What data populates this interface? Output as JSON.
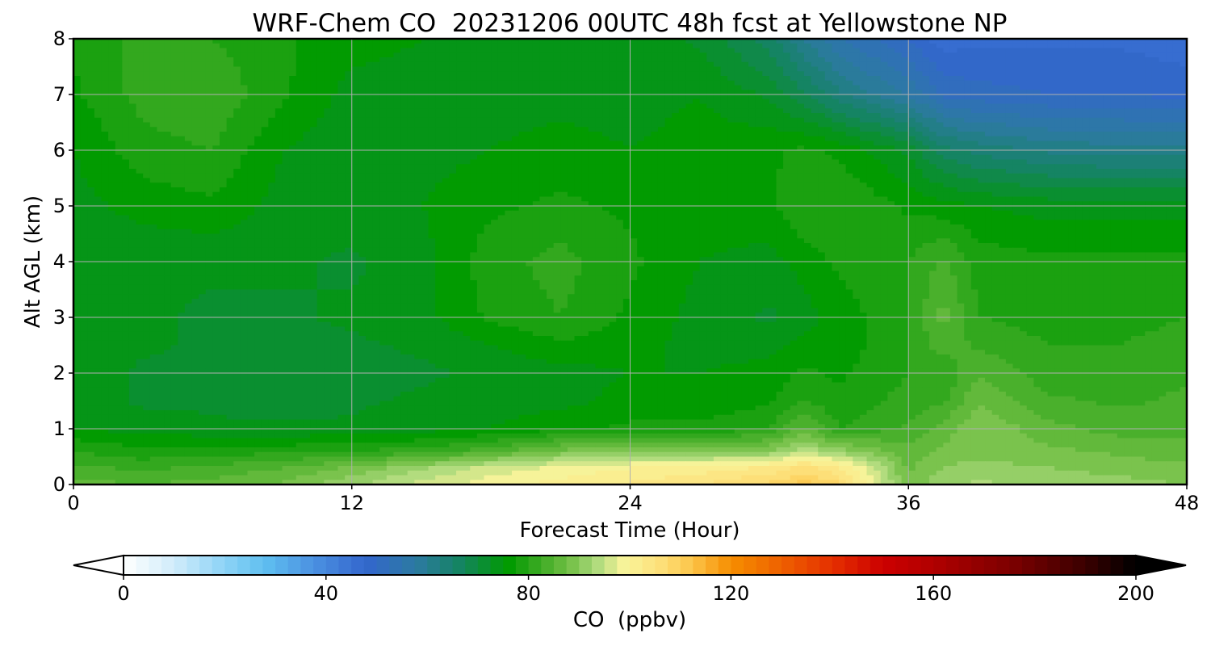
{
  "chart_data": {
    "type": "heatmap",
    "subtype": "filled-contour",
    "title": "WRF-Chem CO  20231206 00UTC 48h fcst at Yellowstone NP",
    "xlabel": "Forecast Time (Hour)",
    "ylabel": "Alt AGL (km)",
    "xlim": [
      0,
      48
    ],
    "ylim": [
      0,
      8
    ],
    "xticks": [
      0,
      12,
      24,
      36,
      48
    ],
    "yticks": [
      0,
      1,
      2,
      3,
      4,
      5,
      6,
      7,
      8
    ],
    "grid": true,
    "units_note": "values in ppbv, estimated from filled contour colors",
    "x": [
      0,
      3,
      6,
      9,
      12,
      15,
      18,
      21,
      24,
      27,
      30,
      31.5,
      33,
      36,
      37.5,
      39,
      42,
      45,
      48
    ],
    "y": [
      0,
      0.3,
      0.6,
      1,
      1.5,
      2,
      2.5,
      3,
      4,
      5,
      6,
      7,
      8
    ],
    "z": [
      [
        86,
        85,
        86,
        88,
        92,
        96,
        99,
        101,
        103,
        105,
        108,
        111,
        108,
        88,
        92,
        93,
        92,
        91,
        90
      ],
      [
        83,
        82,
        83,
        85,
        88,
        92,
        96,
        98,
        100,
        101,
        103,
        106,
        103,
        87,
        90,
        91,
        90,
        89,
        88
      ],
      [
        80,
        78,
        79,
        79,
        80,
        81,
        84,
        88,
        90,
        89,
        90,
        94,
        91,
        86,
        88,
        89,
        88,
        87,
        86
      ],
      [
        75,
        74,
        73,
        73,
        73,
        74,
        75,
        77,
        78,
        78,
        80,
        86,
        80,
        83,
        86,
        90,
        86,
        84,
        84
      ],
      [
        74,
        72,
        72,
        71,
        72,
        73,
        74,
        74,
        76,
        76,
        77,
        80,
        78,
        81,
        82,
        87,
        83,
        82,
        83
      ],
      [
        74,
        72,
        71,
        71,
        71,
        72,
        73,
        74,
        75,
        75,
        76,
        78,
        77,
        80,
        80,
        85,
        81,
        81,
        82
      ],
      [
        74,
        73,
        72,
        72,
        72,
        73,
        75,
        77,
        76,
        74,
        74,
        76,
        76,
        80,
        84,
        82,
        80,
        80,
        81
      ],
      [
        73,
        73,
        72,
        72,
        73,
        74,
        78,
        80,
        77,
        74,
        72,
        74,
        76,
        80,
        86,
        80,
        79,
        79,
        80
      ],
      [
        73,
        73,
        73,
        73,
        72,
        74,
        79,
        81,
        78,
        75,
        74,
        76,
        78,
        80,
        83,
        79,
        78,
        78,
        78
      ],
      [
        74,
        76,
        77,
        74,
        74,
        75,
        77,
        78,
        77,
        76,
        77,
        80,
        80,
        77,
        76,
        75,
        74,
        74,
        74
      ],
      [
        75,
        79,
        80,
        75,
        73,
        74,
        75,
        76,
        75,
        76,
        77,
        78,
        77,
        72,
        66,
        64,
        62,
        61,
        61
      ],
      [
        77,
        81,
        82,
        78,
        74,
        74,
        74,
        74,
        74,
        75,
        72,
        68,
        63,
        57,
        52,
        51,
        50,
        50,
        49
      ],
      [
        78,
        81,
        80,
        78,
        76,
        75,
        75,
        74,
        74,
        72,
        66,
        60,
        55,
        50,
        46,
        47,
        47,
        47,
        46
      ]
    ],
    "colorbar": {
      "label": "CO  (ppbv)",
      "min": 0,
      "max": 200,
      "step": 2.5,
      "ticks": [
        0,
        40,
        80,
        120,
        160,
        200
      ],
      "extend": "both",
      "orientation": "horizontal",
      "stops": [
        [
          0,
          "#ffffff"
        ],
        [
          10,
          "#d0ecfa"
        ],
        [
          20,
          "#8dd3f6"
        ],
        [
          28,
          "#5fbff0"
        ],
        [
          38,
          "#4a8fe0"
        ],
        [
          48,
          "#3366cc"
        ],
        [
          58,
          "#2c7aa0"
        ],
        [
          66,
          "#168366"
        ],
        [
          76,
          "#009a00"
        ],
        [
          82,
          "#3aaa22"
        ],
        [
          88,
          "#72bf45"
        ],
        [
          93,
          "#a8d87a"
        ],
        [
          99,
          "#f9f49a"
        ],
        [
          106,
          "#fde07a"
        ],
        [
          112,
          "#fcc74c"
        ],
        [
          120,
          "#f68d00"
        ],
        [
          128,
          "#f06a00"
        ],
        [
          140,
          "#e53000"
        ],
        [
          150,
          "#cc0000"
        ],
        [
          160,
          "#b00000"
        ],
        [
          176,
          "#7a0000"
        ],
        [
          190,
          "#3a0000"
        ],
        [
          200,
          "#000000"
        ]
      ]
    }
  }
}
